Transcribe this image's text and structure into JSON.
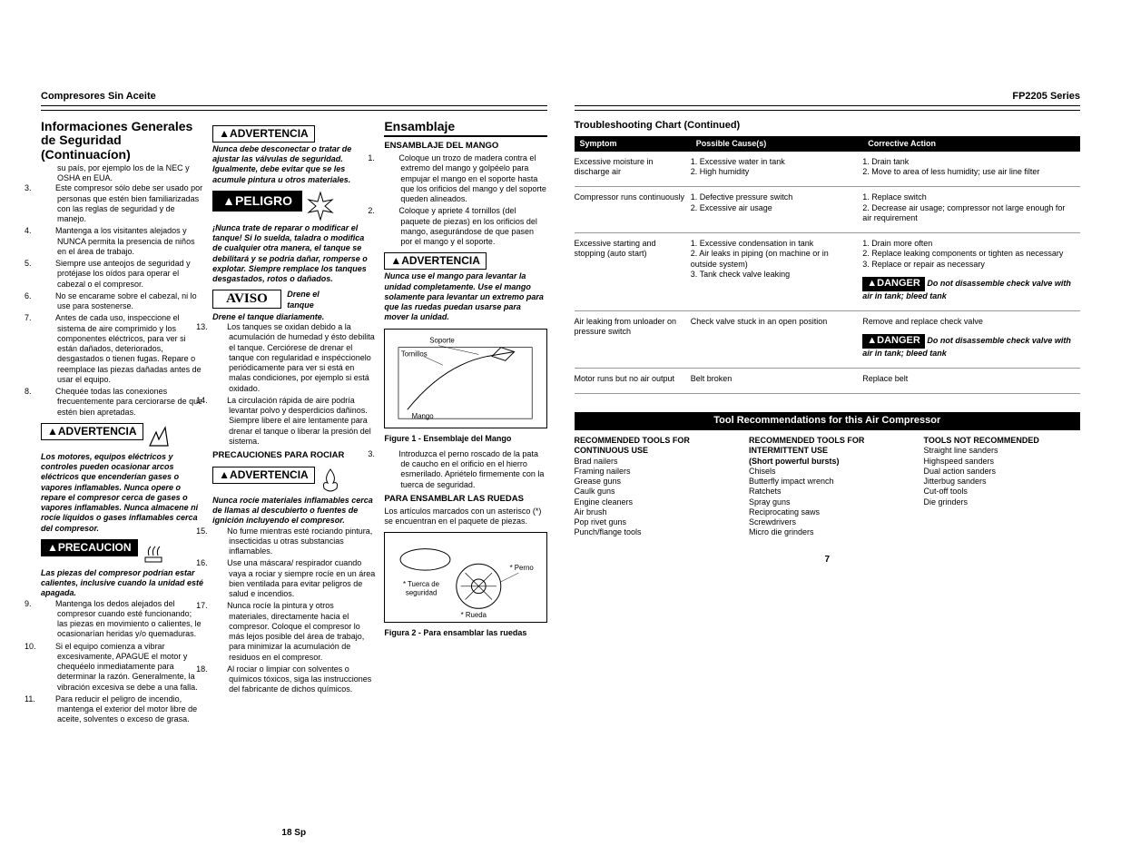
{
  "leftPage": {
    "headerLeft": "Compresores Sin Aceite",
    "headerRight": "",
    "col1": {
      "title": "Informaciones Generales de Seguridad (Continuacíon)",
      "lead": "su país, por ejemplo los de la NEC y OSHA en EUA.",
      "items": [
        "Este compresor sólo debe ser usado por personas que estén bien familiarizadas con las reglas de seguridad y de manejo.",
        "Mantenga a los visitantes alejados y NUNCA permita la presencia de niños en el área de trabajo.",
        "Siempre use anteojos de seguridad y protéjase los oídos para operar el cabezal o el compresor.",
        "No se encarame sobre el cabezal, ni lo use para sostenerse.",
        "Antes de cada uso, inspeccione el sistema de aire comprimido y los componentes eléctricos, para ver si están dañados, deteriorados, desgastados o tienen fugas. Repare o reemplace las piezas dañadas antes de usar el equipo.",
        "Chequée todas las conexiones frecuentemente para cerciorarse de que estén bien apretadas."
      ],
      "start": 3,
      "warn1Label": "▲ADVERTENCIA",
      "warn1Text": "Los motores, equipos eléctricos y controles pueden ocasionar arcos eléctricos que encenderían gases o vapores inflamables. Nunca opere o repare el compresor cerca de gases o vapores inflamables. Nunca almacene ni rocíe líquidos o gases inflamables cerca del compresor.",
      "warn2Label": "▲PRECAUCION",
      "warn2Text": "Las piezas del compresor podrían estar calientes, inclusive cuando la unidad esté apagada.",
      "items2": [
        "Mantenga los dedos alejados del compresor cuando esté funcionando; las piezas en movimiento o calientes, le ocasionarían heridas y/o quemaduras.",
        "Si el equipo comienza a vibrar excesivamente, APAGUE el motor y chequéelo inmediatamente para determinar la razón. Generalmente, la vibración excesiva se debe a una falla.",
        "Para reducir el peligro de incendio, mantenga el exterior del motor libre de aceite, solventes o exceso de grasa."
      ],
      "start2": 9
    },
    "col2": {
      "warn1Label": "▲ADVERTENCIA",
      "warn1Text": "Nunca debe desconectar o tratar de ajustar las válvulas de seguridad. Igualmente, debe evitar que se les acumule pintura u otros materiales.",
      "dangerLabel": "▲PELIGRO",
      "dangerText": "¡Nunca trate de reparar o modificar el tanque! Si lo suelda, taladra o modifica de cualquier otra manera, el tanque se debilitará y se podría dañar, romperse o explotar. Siempre remplace los tanques desgastados, rotos o dañados.",
      "avisoLabel": "AVISO",
      "avisoText": "Drene el tanque diariamente.",
      "items": [
        "Los tanques se oxidan debido a la acumulación de humedad y ésto debilita el tanque. Cerciórese de drenar el tanque con regularidad e inspéccionelo periódicamente para ver si está en malas condiciones, por ejemplo si está oxidado.",
        "La circulación rápida de aire podría levantar polvo y desperdicios dañinos. Siempre libere el aire lentamente para drenar el tanque o liberar la presión del sistema."
      ],
      "start": 13,
      "subhead": "PRECAUCIONES PARA ROCIAR",
      "warn2Label": "▲ADVERTENCIA",
      "warn2Text": "Nunca rocíe materiales inflamables cerca de llamas al descubierto o fuentes de ignición incluyendo el compresor.",
      "items2": [
        "No fume mientras esté rociando pintura, insecticidas u otras substancias inflamables.",
        "Use una máscara/ respirador cuando vaya a rociar y siempre rocíe en un área bien ventilada para evitar peligros de salud e incendios.",
        "Nunca rocíe la pintura y otros materiales, directamente hacia el compresor. Coloque el compresor lo más lejos posible del área de trabajo, para minimizar la acumulación de residuos en el compresor.",
        "Al rociar o limpiar con solventes o químicos tóxicos, siga las instrucciones del fabricante de dichos químicos."
      ],
      "start2": 15
    },
    "col3": {
      "title": "Ensamblaje",
      "sub1": "ENSAMBLAJE DEL MANGO",
      "items1": [
        "Coloque un trozo de madera contra el extremo del mango y golpéelo para empujar el mango en el soporte hasta que los orificios del mango y del soporte queden alineados.",
        "Coloque y apriete 4 tornillos (del paquete de piezas) en los orificios del mango, asegurándose de que pasen por el mango y el soporte."
      ],
      "warnLabel": "▲ADVERTENCIA",
      "warnText": "Nunca use el mango para levantar la unidad completamente. Use el mango solamente para levantar un extremo para que las ruedas puedan usarse para mover la unidad.",
      "fig1Labels": {
        "a": "Soporte",
        "b": "Tornillos",
        "c": "Mango"
      },
      "fig1Cap": "Figure 1 - Ensemblaje del Mango",
      "item3": "Introduzca el perno roscado de la pata de caucho en el orificio en el hierro esmerilado. Apriételo firmemente con la tuerca de seguridad.",
      "sub2": "PARA ENSAMBLAR LAS RUEDAS",
      "text2": "Los artículos marcados con un asterisco (*) se encuentran en el paquete de piezas.",
      "fig2Labels": {
        "a": "* Perno",
        "b": "* Tuerca de seguridad",
        "c": "* Rueda"
      },
      "fig2Cap": "Figura 2 - Para ensamblar las ruedas"
    },
    "pageNum": "18 Sp"
  },
  "rightPage": {
    "headerRight": "FP2205 Series",
    "tsTitle": "Troubleshooting Chart (Continued)",
    "cols": [
      "Symptom",
      "Possible Cause(s)",
      "Corrective Action"
    ],
    "rows": [
      {
        "symptom": "Excessive moisture in discharge air",
        "cause": "1. Excessive water in tank\n2. High humidity",
        "action": "1. Drain tank\n2. Move to area of less humidity; use air line filter"
      },
      {
        "symptom": "Compressor runs continuously",
        "cause": "1. Defective pressure switch\n2. Excessive air usage",
        "action": "1. Replace switch\n2. Decrease air usage; compressor not large enough for air requirement"
      },
      {
        "symptom": "Excessive starting and stopping (auto start)",
        "cause": "1. Excessive condensation in tank\n2. Air leaks in piping (on machine or in outside system)\n3. Tank check valve leaking",
        "action": "1. Drain more often\n2. Replace leaking components or tighten as necessary\n3. Replace or repair as necessary",
        "danger": "Do not disassemble check valve with air in tank; bleed tank"
      },
      {
        "symptom": "Air leaking from unloader on pressure switch",
        "cause": "Check valve stuck in an open position",
        "action": "Remove and replace check valve",
        "danger": "Do not disassemble check valve with air in tank; bleed tank"
      },
      {
        "symptom": "Motor runs but no air output",
        "cause": "Belt broken",
        "action": "Replace belt"
      }
    ],
    "dangerLabel": "▲DANGER",
    "recBar": "Tool Recommendations for this Air Compressor",
    "rec": {
      "c1h": "RECOMMENDED TOOLS FOR CONTINUOUS USE",
      "c1": [
        "Brad nailers",
        "Framing nailers",
        "Grease guns",
        "Caulk guns",
        "Engine cleaners",
        "Air brush",
        "Pop rivet guns",
        "Punch/flange tools"
      ],
      "c2h": "RECOMMENDED TOOLS FOR INTERMITTENT USE",
      "c2sub": "(Short powerful bursts)",
      "c2": [
        "Chisels",
        "Butterfly impact wrench",
        "Ratchets",
        "Spray guns",
        "Reciprocating saws",
        "Screwdrivers",
        "Micro die grinders"
      ],
      "c3h": "TOOLS NOT RECOMMENDED",
      "c3": [
        "Straight line sanders",
        "Highspeed sanders",
        "Dual action sanders",
        "Jitterbug sanders",
        "Cut-off tools",
        "Die grinders"
      ]
    },
    "pageNum": "7"
  }
}
